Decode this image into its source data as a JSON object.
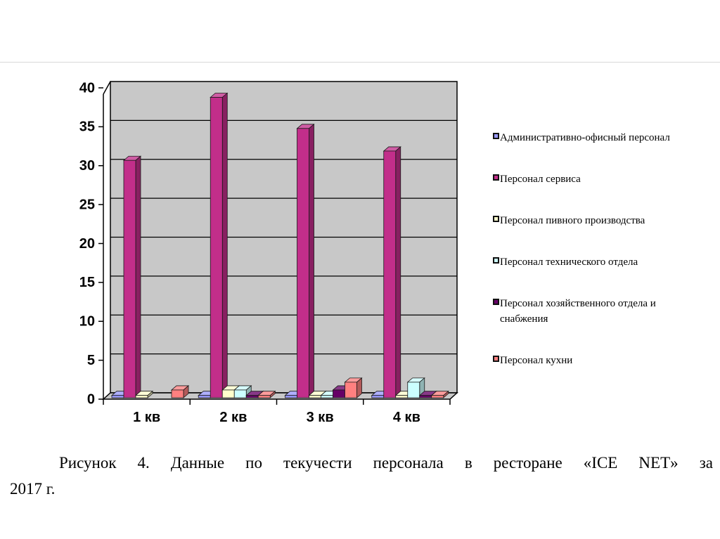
{
  "figure": {
    "caption_line1": "Рисунок 4. Данные по текучести персонала в ресторане «ICE NET» за",
    "caption_line2": "2017 г."
  },
  "chart_data": {
    "type": "bar",
    "style": "3d-column",
    "title": "",
    "xlabel": "",
    "ylabel": "",
    "categories": [
      "1 кв",
      "2 кв",
      "3 кв",
      "4 кв"
    ],
    "series": [
      {
        "name": "Административно-офисный персонал",
        "color": "#9999FF",
        "values": [
          0.3,
          0.3,
          0.3,
          0.3
        ]
      },
      {
        "name": "Персонал сервиса",
        "color": "#C22E8A",
        "values": [
          30.5,
          38.6,
          34.6,
          31.7
        ]
      },
      {
        "name": "Персонал пивного производства",
        "color": "#FFFFCC",
        "values": [
          0.3,
          1,
          0.3,
          0.3
        ]
      },
      {
        "name": "Персонал технического отдела",
        "color": "#CCFFFF",
        "values": [
          0,
          1,
          0.3,
          2
        ]
      },
      {
        "name": "Персонал хозяйственного отдела и снабжения",
        "color": "#660066",
        "values": [
          0,
          0.3,
          1,
          0.3
        ]
      },
      {
        "name": "Персонал кухни",
        "color": "#FF8080",
        "values": [
          1,
          0.3,
          2,
          0.3
        ]
      }
    ],
    "ylim": [
      0,
      40
    ],
    "ytick_step": 5,
    "grid": true,
    "legend_position": "right",
    "plot_bg": "#C8C8C8",
    "gridline_color": "#000000",
    "axis_color": "#000000"
  }
}
